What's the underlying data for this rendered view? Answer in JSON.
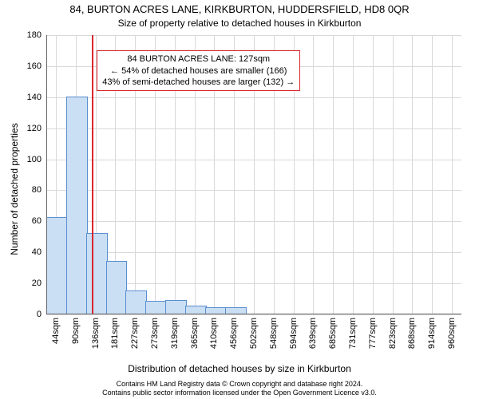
{
  "header": {
    "title": "84, BURTON ACRES LANE, KIRKBURTON, HUDDERSFIELD, HD8 0QR",
    "subtitle": "Size of property relative to detached houses in Kirkburton"
  },
  "axes": {
    "ylabel": "Number of detached properties",
    "xlabel": "Distribution of detached houses by size in Kirkburton"
  },
  "chart": {
    "type": "histogram",
    "x_min": 21,
    "x_max": 983,
    "y_min": 0,
    "y_max": 180,
    "bin_width": 46,
    "bar_fill": "#cadef4",
    "bar_stroke": "#5a8fcf",
    "grid_color": "#d9d9d9",
    "background": "#ffffff",
    "bins": [
      {
        "start": 21,
        "count": 62
      },
      {
        "start": 67,
        "count": 140
      },
      {
        "start": 113,
        "count": 52
      },
      {
        "start": 159,
        "count": 34
      },
      {
        "start": 205,
        "count": 15
      },
      {
        "start": 251,
        "count": 8
      },
      {
        "start": 297,
        "count": 9
      },
      {
        "start": 343,
        "count": 5
      },
      {
        "start": 389,
        "count": 4
      },
      {
        "start": 435,
        "count": 4
      },
      {
        "start": 481,
        "count": 0
      },
      {
        "start": 527,
        "count": 0
      },
      {
        "start": 573,
        "count": 0
      },
      {
        "start": 619,
        "count": 0
      },
      {
        "start": 665,
        "count": 0
      },
      {
        "start": 711,
        "count": 0
      },
      {
        "start": 757,
        "count": 0
      },
      {
        "start": 803,
        "count": 0
      },
      {
        "start": 849,
        "count": 0
      },
      {
        "start": 895,
        "count": 0
      },
      {
        "start": 941,
        "count": 0
      }
    ],
    "yticks": [
      0,
      20,
      40,
      60,
      80,
      100,
      120,
      140,
      160,
      180
    ],
    "xticks": [
      {
        "v": 44,
        "label": "44sqm"
      },
      {
        "v": 90,
        "label": "90sqm"
      },
      {
        "v": 136,
        "label": "136sqm"
      },
      {
        "v": 181,
        "label": "181sqm"
      },
      {
        "v": 227,
        "label": "227sqm"
      },
      {
        "v": 273,
        "label": "273sqm"
      },
      {
        "v": 319,
        "label": "319sqm"
      },
      {
        "v": 365,
        "label": "365sqm"
      },
      {
        "v": 410,
        "label": "410sqm"
      },
      {
        "v": 456,
        "label": "456sqm"
      },
      {
        "v": 502,
        "label": "502sqm"
      },
      {
        "v": 548,
        "label": "548sqm"
      },
      {
        "v": 594,
        "label": "594sqm"
      },
      {
        "v": 639,
        "label": "639sqm"
      },
      {
        "v": 685,
        "label": "685sqm"
      },
      {
        "v": 731,
        "label": "731sqm"
      },
      {
        "v": 777,
        "label": "777sqm"
      },
      {
        "v": 823,
        "label": "823sqm"
      },
      {
        "v": 868,
        "label": "868sqm"
      },
      {
        "v": 914,
        "label": "914sqm"
      },
      {
        "v": 960,
        "label": "960sqm"
      }
    ],
    "reference_line": {
      "x": 127,
      "color": "#d9262c"
    },
    "annotation": {
      "border_color": "#d9262c",
      "lines": [
        "84 BURTON ACRES LANE: 127sqm",
        "← 54% of detached houses are smaller (166)",
        "43% of semi-detached houses are larger (132) →"
      ]
    }
  },
  "footer": {
    "line1": "Contains HM Land Registry data © Crown copyright and database right 2024.",
    "line2": "Contains public sector information licensed under the Open Government Licence v3.0."
  }
}
